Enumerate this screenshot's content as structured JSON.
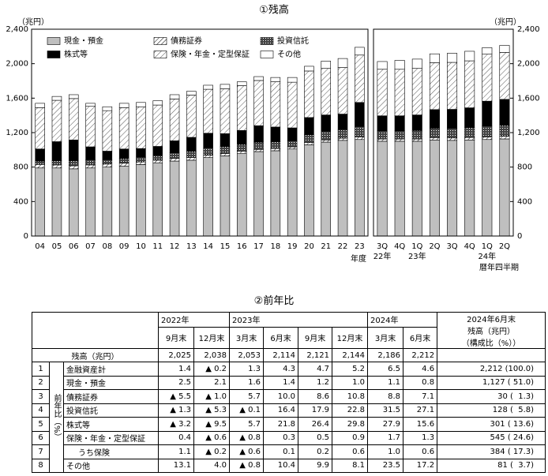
{
  "chart_data": [
    {
      "type": "bar",
      "stacked": true,
      "title": "①残高",
      "y_unit": "（兆円）",
      "xlabel": "年度",
      "categories": [
        "04",
        "05",
        "06",
        "07",
        "08",
        "09",
        "10",
        "11",
        "12",
        "13",
        "14",
        "15",
        "16",
        "17",
        "18",
        "19",
        "20",
        "21",
        "22",
        "23"
      ],
      "ylim": [
        0,
        2400
      ],
      "yticks": [
        0,
        400,
        800,
        {
          "value": 1200,
          "label": "1,200"
        },
        {
          "value": 1600,
          "label": "1,600"
        },
        {
          "value": 2000,
          "label": "2,000"
        },
        {
          "value": 2400,
          "label": "2,400"
        }
      ],
      "legend": "upper left",
      "series": [
        {
          "name": "現金・預金",
          "color": "#bfbfbf",
          "values": [
            790,
            790,
            780,
            790,
            800,
            810,
            830,
            850,
            870,
            880,
            910,
            930,
            960,
            980,
            990,
            1010,
            1060,
            1090,
            1110,
            1120
          ]
        },
        {
          "name": "債務証券",
          "color": "#e0e0e0",
          "pattern": "diagonal",
          "values": [
            40,
            35,
            35,
            35,
            35,
            35,
            30,
            30,
            30,
            30,
            28,
            28,
            25,
            25,
            25,
            25,
            25,
            25,
            25,
            30
          ]
        },
        {
          "name": "投資信託",
          "color": "#555555",
          "pattern": "dots",
          "values": [
            40,
            50,
            60,
            60,
            50,
            55,
            55,
            55,
            65,
            75,
            85,
            80,
            80,
            85,
            80,
            70,
            90,
            100,
            100,
            120
          ]
        },
        {
          "name": "株式等",
          "color": "#000000",
          "values": [
            140,
            220,
            240,
            150,
            100,
            110,
            100,
            105,
            140,
            160,
            170,
            150,
            160,
            190,
            170,
            150,
            200,
            190,
            180,
            280
          ]
        },
        {
          "name": "保険・年金・定型保証",
          "color": "#d9d9d9",
          "pattern": "hatch",
          "values": [
            480,
            480,
            480,
            470,
            470,
            480,
            485,
            480,
            485,
            490,
            510,
            520,
            520,
            525,
            525,
            530,
            540,
            540,
            540,
            550
          ]
        },
        {
          "name": "その他",
          "color": "#ffffff",
          "values": [
            50,
            45,
            45,
            35,
            45,
            50,
            50,
            50,
            50,
            45,
            47,
            52,
            45,
            45,
            50,
            55,
            55,
            85,
            105,
            90
          ]
        }
      ]
    },
    {
      "type": "bar",
      "stacked": true,
      "y_unit": "（兆円）",
      "xlabel": "暦年四半期",
      "categories": [
        "3Q",
        "4Q",
        "1Q",
        "2Q",
        "3Q",
        "4Q",
        "1Q",
        "2Q"
      ],
      "category_years": [
        "22年",
        null,
        "23年",
        null,
        null,
        null,
        "24年",
        null
      ],
      "ylim": [
        0,
        2400
      ],
      "yticks": [
        0,
        400,
        800,
        {
          "value": 1200,
          "label": "1,200"
        },
        {
          "value": 1600,
          "label": "1,600"
        },
        {
          "value": 2000,
          "label": "2,000"
        },
        {
          "value": 2400,
          "label": "2,400"
        }
      ],
      "series": [
        {
          "color": "#bfbfbf",
          "values": [
            1100,
            1100,
            1100,
            1115,
            1110,
            1115,
            1120,
            1127
          ]
        },
        {
          "color": "#e0e0e0",
          "pattern": "diagonal",
          "values": [
            25,
            25,
            25,
            27,
            28,
            28,
            30,
            30
          ]
        },
        {
          "color": "#555555",
          "pattern": "dots",
          "values": [
            95,
            95,
            100,
            110,
            112,
            115,
            125,
            128
          ]
        },
        {
          "color": "#000000",
          "values": [
            175,
            175,
            180,
            215,
            220,
            230,
            290,
            301
          ]
        },
        {
          "color": "#d9d9d9",
          "pattern": "hatch",
          "values": [
            540,
            540,
            540,
            545,
            545,
            545,
            545,
            545
          ]
        },
        {
          "color": "#ffffff",
          "values": [
            90,
            103,
            108,
            102,
            106,
            111,
            76,
            81
          ]
        }
      ]
    }
  ],
  "table": {
    "title": "②前年比",
    "month_years": [
      "2022年",
      null,
      "2023年",
      null,
      null,
      null,
      "2024年",
      null
    ],
    "months": [
      "9月末",
      "12月末",
      "3月末",
      "6月末",
      "9月末",
      "12月末",
      "3月末",
      "6月末"
    ],
    "last_header": [
      "2024年6月末",
      "残高（兆円）",
      "（構成比（%））"
    ],
    "balance_label": "残高（兆円）",
    "balance": [
      "2,025",
      "2,038",
      "2,053",
      "2,114",
      "2,121",
      "2,144",
      "2,186",
      "2,212"
    ],
    "side_label": "前年比（%）",
    "rows": [
      [
        "1",
        "金融資産計",
        "1.4",
        "▲ 0.2",
        "1.3",
        "4.3",
        "4.7",
        "5.2",
        "6.5",
        "4.6",
        "2,212 (100.0)"
      ],
      [
        "2",
        "現金・預金",
        "2.5",
        "2.1",
        "1.6",
        "1.4",
        "1.2",
        "1.0",
        "1.1",
        "0.8",
        "1,127 ( 51.0)"
      ],
      [
        "3",
        "債務証券",
        "▲ 5.5",
        "▲ 1.0",
        "5.7",
        "10.0",
        "8.6",
        "10.8",
        "8.8",
        "7.1",
        "30 (  1.3)"
      ],
      [
        "4",
        "投資信託",
        "▲ 1.3",
        "▲ 5.3",
        "▲ 0.1",
        "16.4",
        "17.9",
        "22.8",
        "31.5",
        "27.1",
        "128 (  5.8)"
      ],
      [
        "5",
        "株式等",
        "▲ 3.2",
        "▲ 9.5",
        "5.7",
        "21.8",
        "26.4",
        "29.8",
        "27.9",
        "15.6",
        "301 ( 13.6)"
      ],
      [
        "6",
        "保険・年金・定型保証",
        "0.4",
        "▲ 0.6",
        "▲ 0.8",
        "0.3",
        "0.5",
        "0.9",
        "1.7",
        "1.3",
        "545 ( 24.6)"
      ],
      [
        "7",
        "うち保険",
        "1.1",
        "▲ 0.2",
        "▲ 0.6",
        "0.1",
        "0.2",
        "0.6",
        "1.0",
        "0.6",
        "384 ( 17.3)"
      ],
      [
        "8",
        "その他",
        "13.1",
        "4.0",
        "▲ 0.8",
        "10.4",
        "9.9",
        "8.1",
        "23.5",
        "17.2",
        "81 (  3.7)"
      ]
    ]
  }
}
